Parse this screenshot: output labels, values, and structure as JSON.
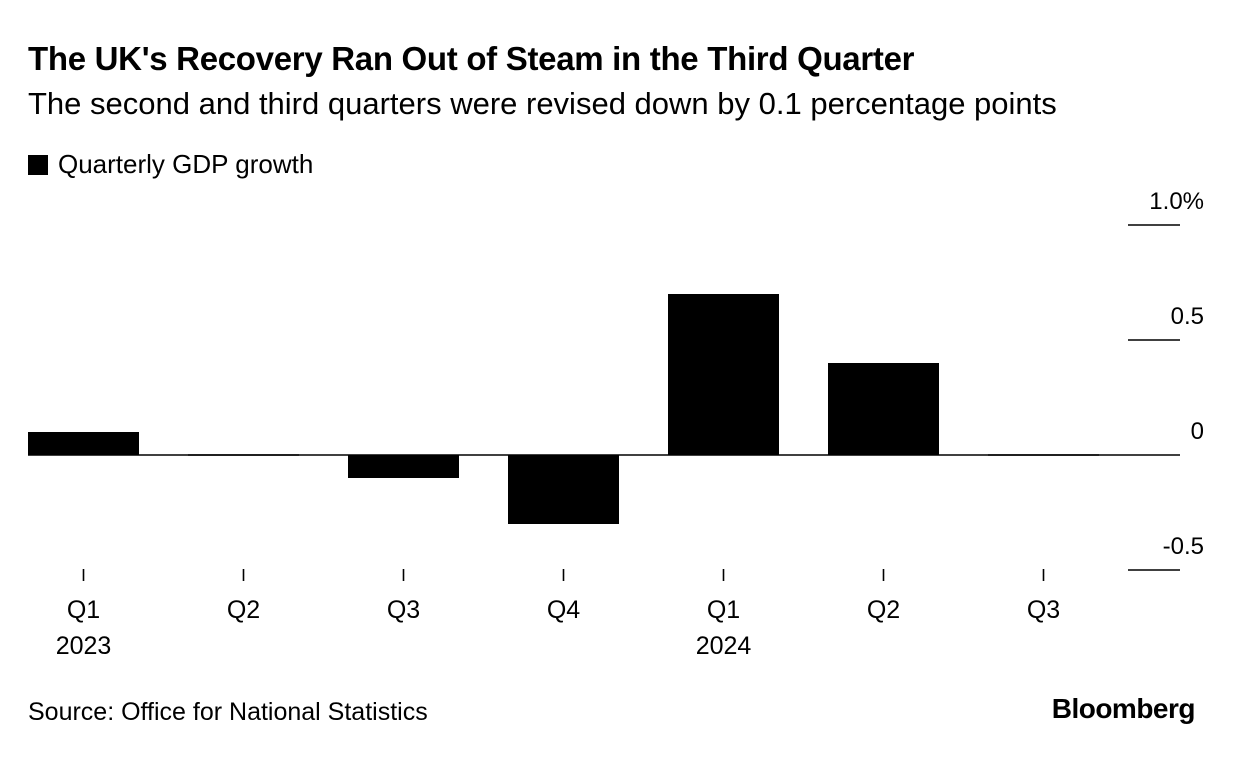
{
  "chart_data": {
    "type": "bar",
    "title": "The UK's Recovery Ran Out of Steam in the Third Quarter",
    "subtitle": "The second and third quarters were revised down by 0.1 percentage points",
    "legend": [
      "Quarterly GDP growth"
    ],
    "categories": [
      "Q1",
      "Q2",
      "Q3",
      "Q4",
      "Q1",
      "Q2",
      "Q3"
    ],
    "year_labels": [
      "2023",
      "",
      "",
      "",
      "2024",
      "",
      ""
    ],
    "series": [
      {
        "name": "Quarterly GDP growth",
        "values": [
          0.1,
          0.0,
          -0.1,
          -0.3,
          0.7,
          0.4,
          0.0
        ]
      }
    ],
    "yticks": [
      {
        "value": 1.0,
        "label": "1.0%"
      },
      {
        "value": 0.5,
        "label": "0.5"
      },
      {
        "value": 0,
        "label": "0"
      },
      {
        "value": -0.5,
        "label": "-0.5"
      }
    ],
    "ylim": [
      -0.5,
      1.0
    ],
    "xlabel": "",
    "ylabel": "",
    "legend_position": "top-left",
    "colors": {
      "bar": "#000000",
      "background": "#ffffff"
    }
  },
  "footer": {
    "source": "Source: Office for National Statistics",
    "brand": "Bloomberg"
  }
}
